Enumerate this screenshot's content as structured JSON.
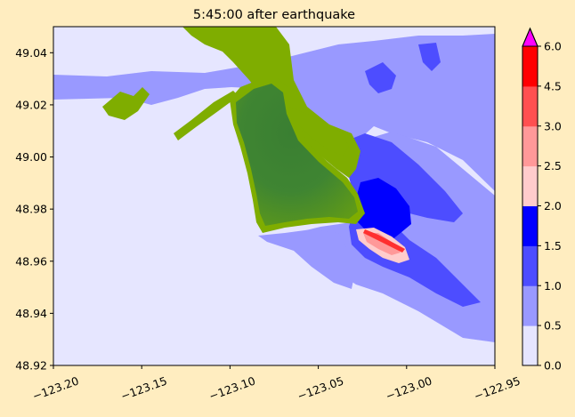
{
  "chart_data": {
    "type": "heatmap",
    "title": "5:45:00 after earthquake",
    "xlabel": "",
    "ylabel": "",
    "xlim": [
      -123.2,
      -122.95
    ],
    "ylim": [
      48.92,
      49.05
    ],
    "x_ticks": [
      -123.2,
      -123.15,
      -123.1,
      -123.05,
      -123.0,
      -122.95
    ],
    "x_tick_labels": [
      "−123.20",
      "−123.15",
      "−123.10",
      "−123.05",
      "−123.00",
      "−122.95"
    ],
    "y_ticks": [
      48.92,
      48.94,
      48.96,
      48.98,
      49.0,
      49.02,
      49.04
    ],
    "y_tick_labels": [
      "48.92",
      "48.94",
      "48.96",
      "48.98",
      "49.00",
      "49.02",
      "49.04"
    ],
    "grid": false,
    "colorbar": {
      "levels": [
        0.0,
        0.5,
        1.0,
        1.5,
        2.0,
        2.5,
        3.0,
        4.5,
        6.0
      ],
      "tick_labels": [
        "0.0",
        "0.5",
        "1.0",
        "1.5",
        "2.0",
        "2.5",
        "3.0",
        "4.5",
        "6.0"
      ],
      "colors": [
        "#e6e6ff",
        "#9999ff",
        "#4d4dff",
        "#0000ff",
        "#ffcccc",
        "#ff9999",
        "#ff5050",
        "#ff0000"
      ],
      "extend_max_color": "#ff00ff"
    },
    "colors": {
      "background": "#ffedc0",
      "land_light": "#7fad00",
      "land_dark": "#3a7f32",
      "water_base": "#e6e6ff"
    }
  }
}
